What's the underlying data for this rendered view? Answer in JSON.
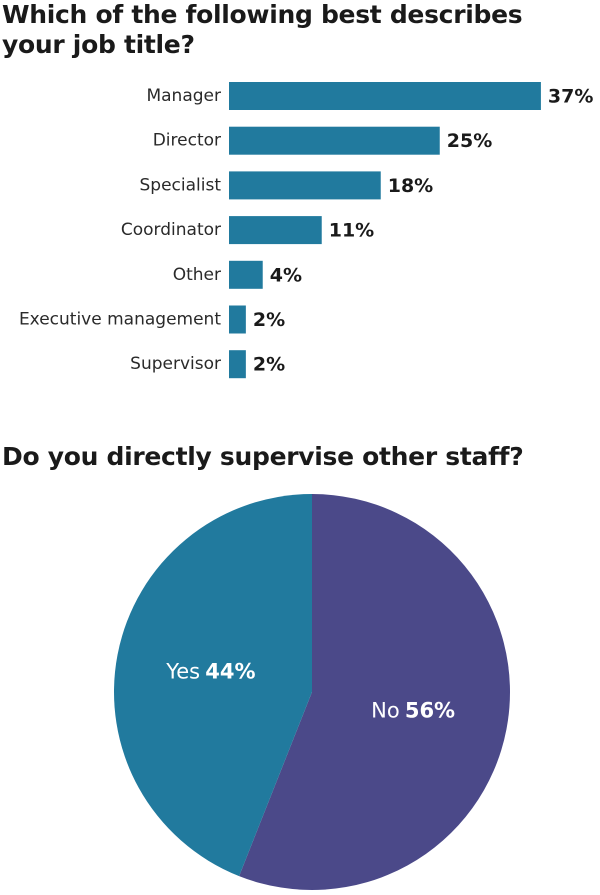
{
  "chart_data": [
    {
      "type": "bar",
      "title": "Which of the following best describes your job title?",
      "categories": [
        "Manager",
        "Director",
        "Specialist",
        "Coordinator",
        "Other",
        "Executive management",
        "Supervisor"
      ],
      "values": [
        37,
        25,
        18,
        11,
        4,
        2,
        2
      ],
      "value_labels": [
        "37%",
        "25%",
        "18%",
        "11%",
        "4%",
        "2%",
        "2%"
      ],
      "color": "#217a9e"
    },
    {
      "type": "pie",
      "title": "Do you directly supervise other staff?",
      "categories": [
        "Yes",
        "No"
      ],
      "values": [
        44,
        56
      ],
      "value_labels": [
        "44%",
        "56%"
      ],
      "colors": [
        "#217a9e",
        "#4b4989"
      ]
    }
  ]
}
